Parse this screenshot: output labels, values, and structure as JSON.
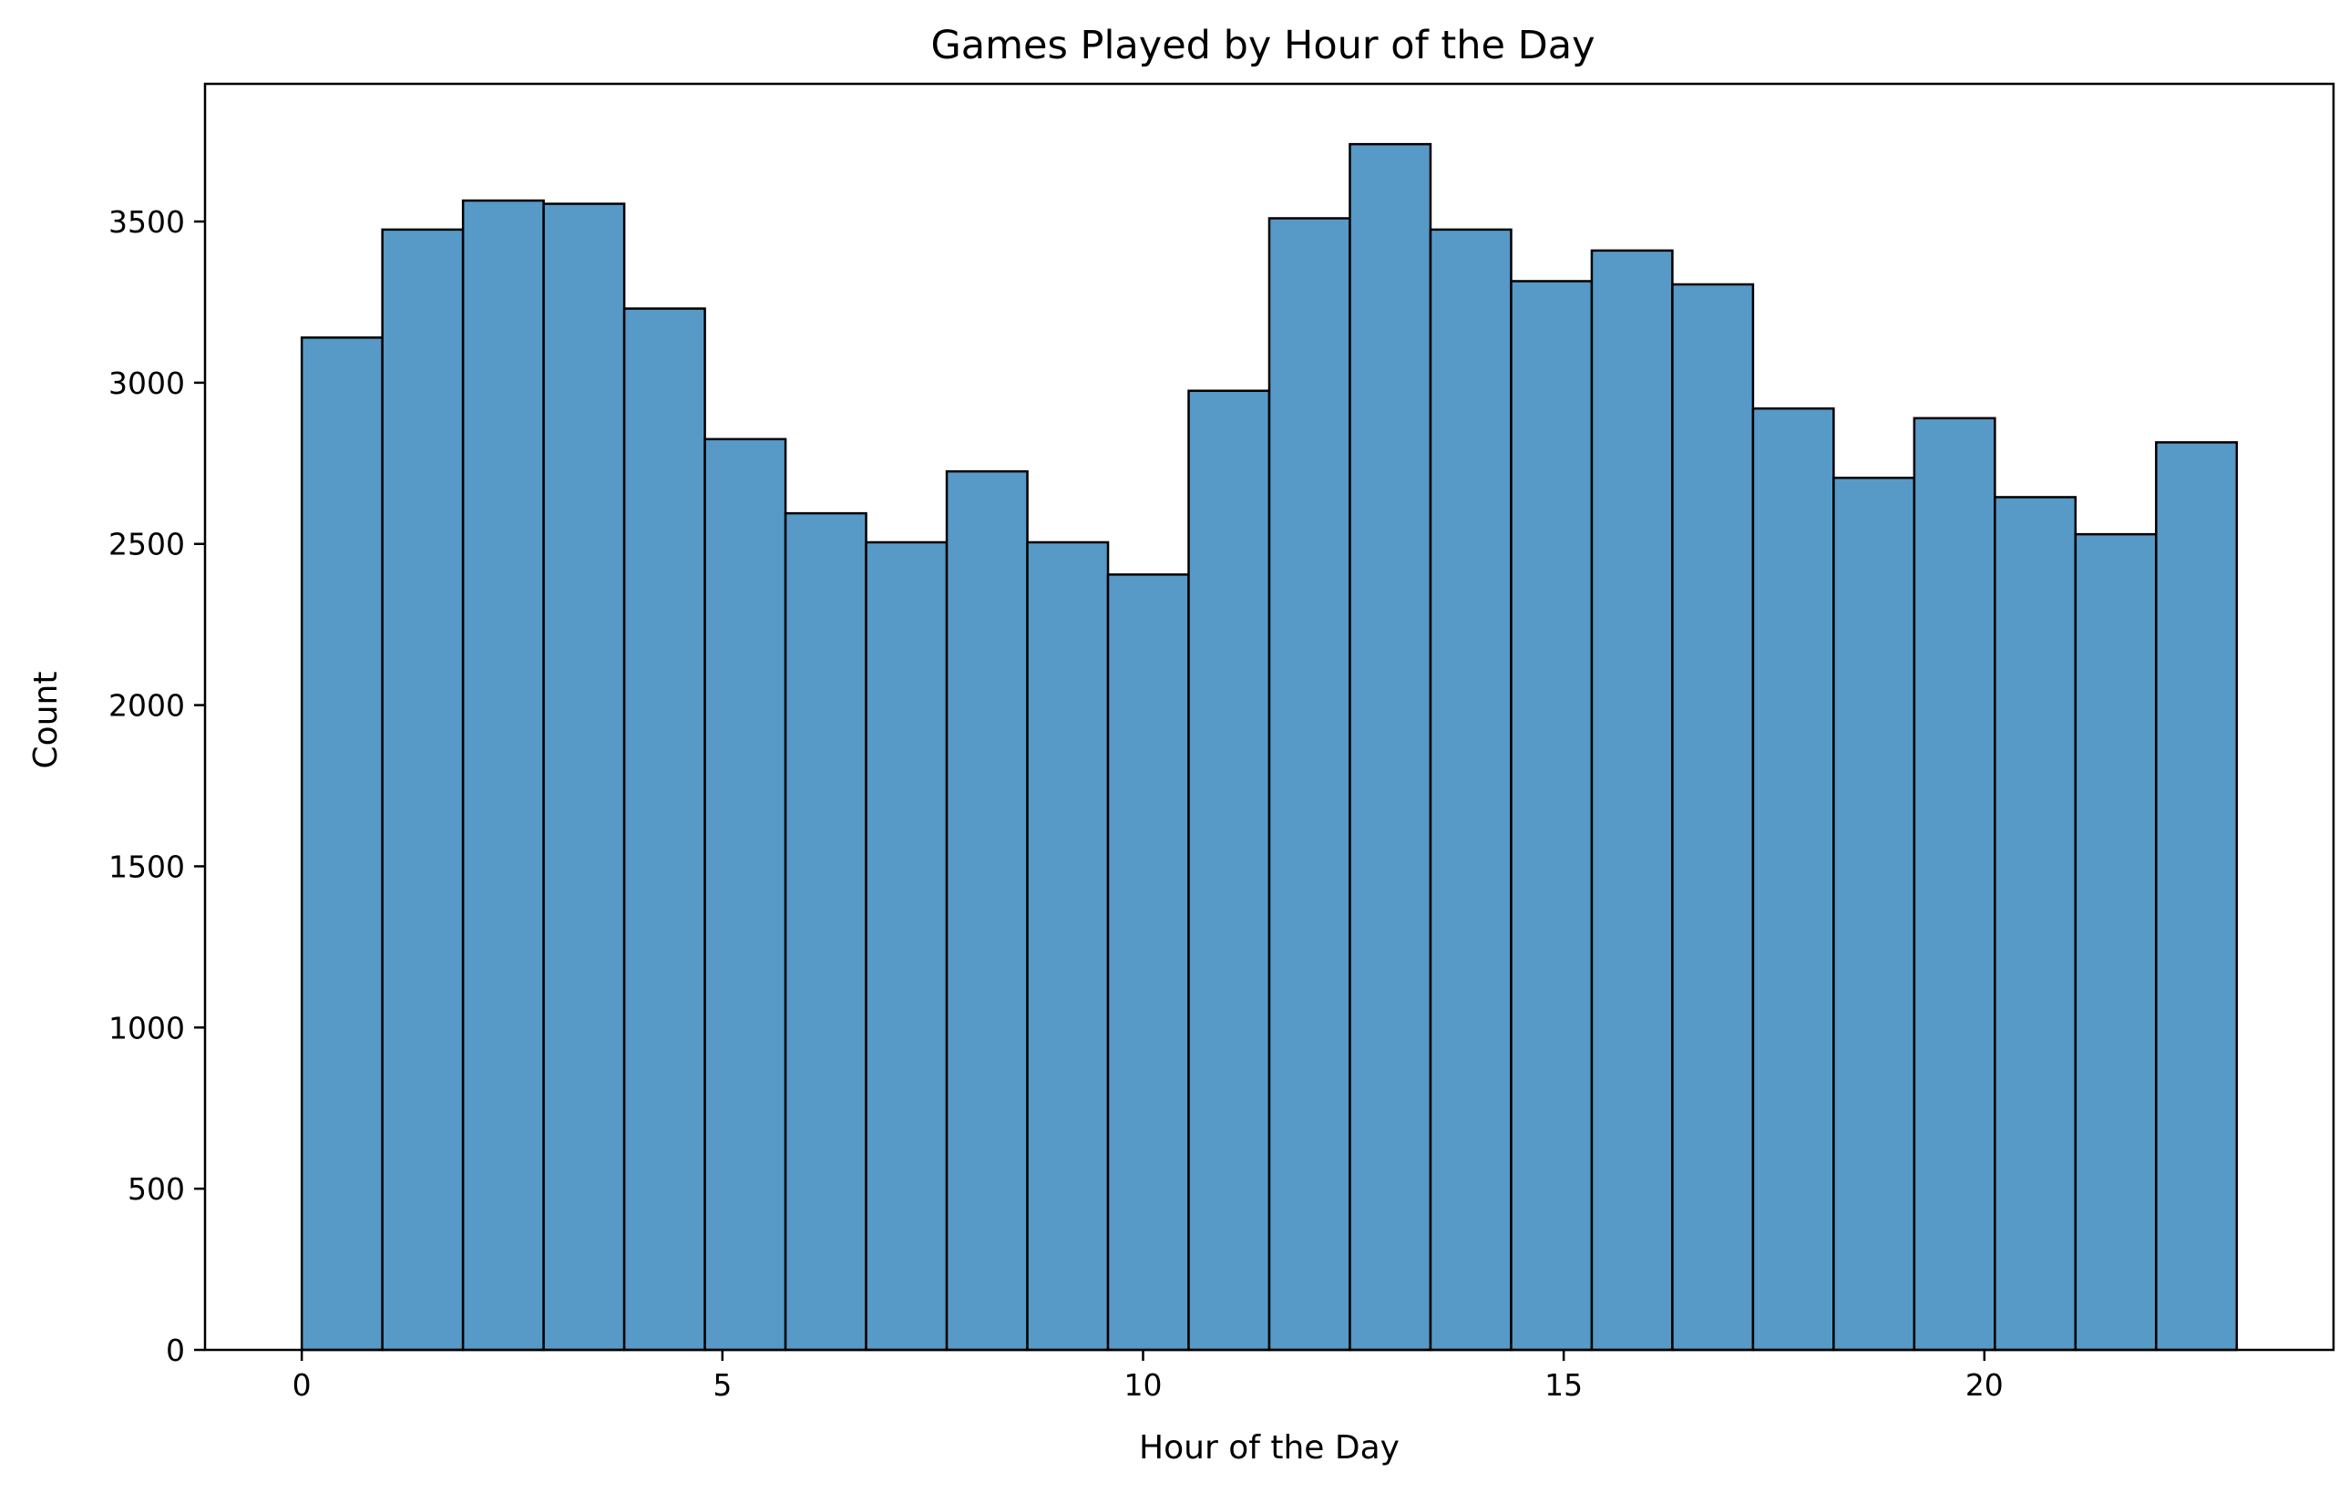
{
  "chart_data": {
    "type": "bar",
    "subtype": "histogram",
    "title": "Games Played by Hour of the Day",
    "xlabel": "Hour of the Day",
    "ylabel": "Count",
    "bin_edges": [
      0,
      0.9583,
      1.9167,
      2.875,
      3.8333,
      4.7917,
      5.75,
      6.7083,
      7.6667,
      8.625,
      9.5833,
      10.5417,
      11.5,
      12.4583,
      13.4167,
      14.375,
      15.3333,
      16.2917,
      17.25,
      18.2083,
      19.1667,
      20.125,
      21.0833,
      22.0417,
      23
    ],
    "values": [
      3140,
      3475,
      3565,
      3555,
      3230,
      2825,
      2595,
      2505,
      2725,
      2505,
      2405,
      2975,
      3510,
      3740,
      3475,
      3315,
      3410,
      3305,
      2920,
      2705,
      2890,
      2645,
      2530,
      2815
    ],
    "xlim": [
      -1.15,
      24.15
    ],
    "ylim": [
      0,
      3927
    ],
    "xticks": [
      0,
      5,
      10,
      15,
      20
    ],
    "xtick_labels": [
      "0",
      "5",
      "10",
      "15",
      "20"
    ],
    "yticks": [
      0,
      500,
      1000,
      1500,
      2000,
      2500,
      3000,
      3500
    ],
    "ytick_labels": [
      "0",
      "500",
      "1000",
      "1500",
      "2000",
      "2500",
      "3000",
      "3500"
    ],
    "grid": false,
    "legend": "none",
    "colors": {
      "bar_fill": "#5799c7",
      "bar_edge": "#000000"
    }
  }
}
